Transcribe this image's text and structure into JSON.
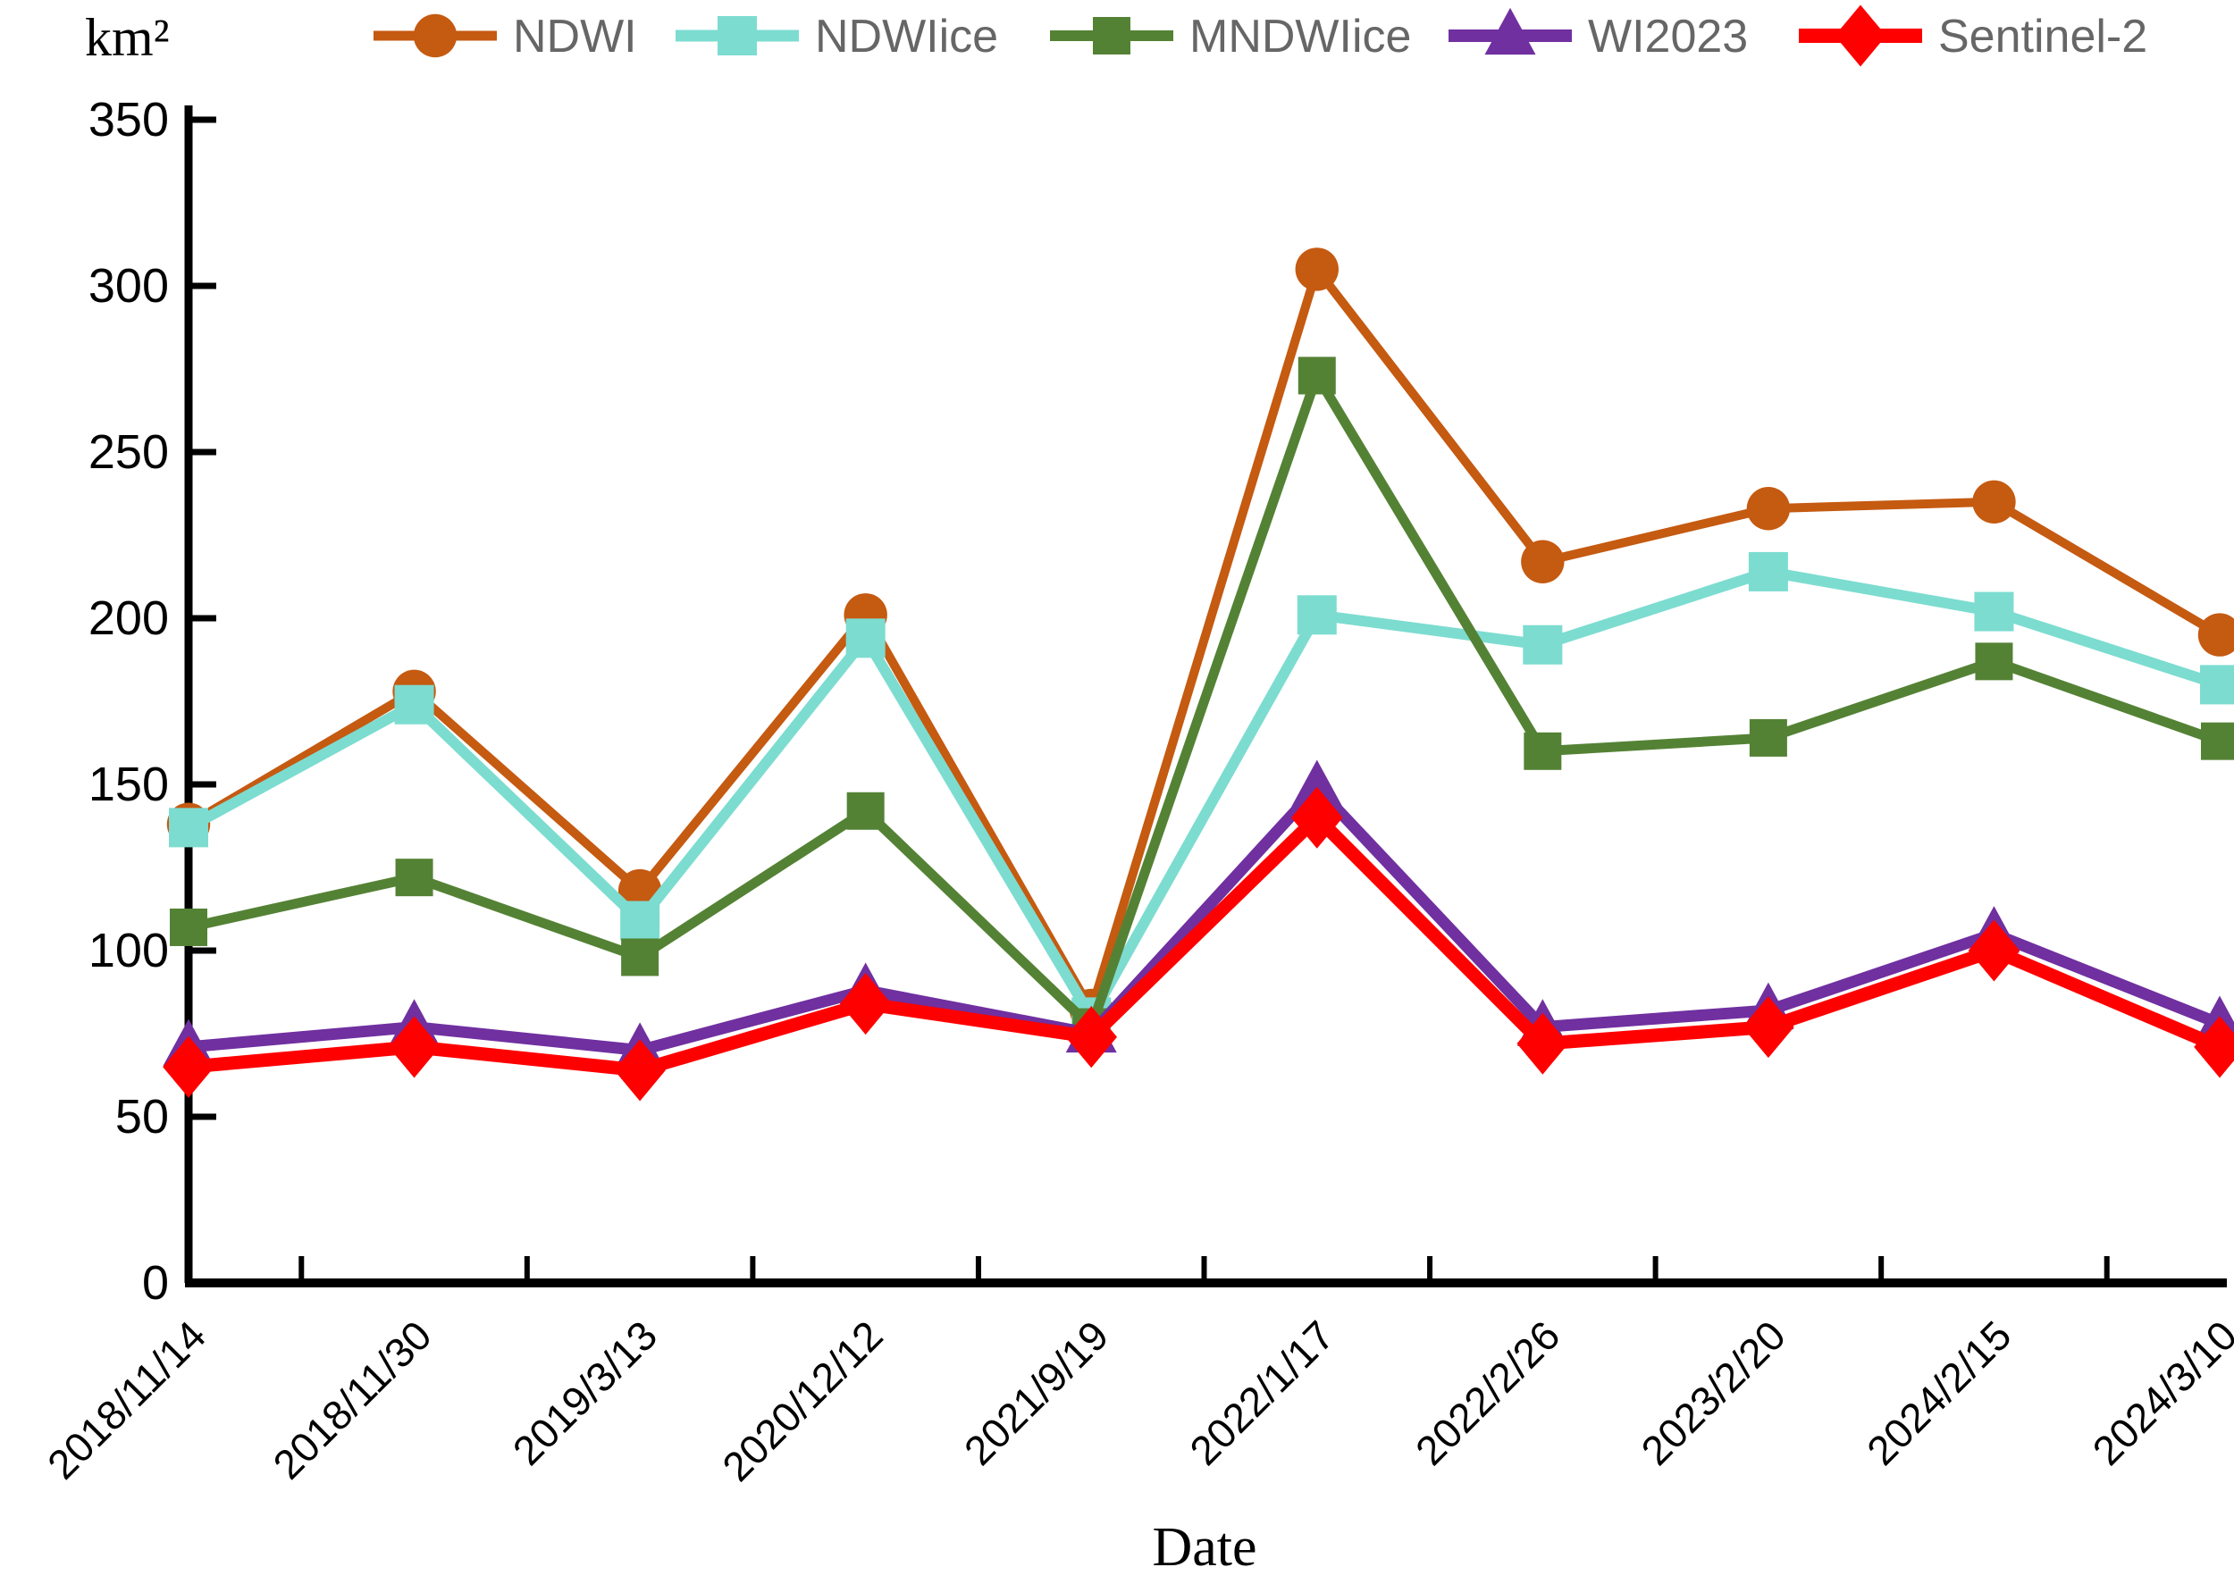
{
  "chart_data": {
    "type": "line",
    "title": "",
    "ylabel": "km²",
    "xlabel": "Date",
    "ylim": [
      0,
      350
    ],
    "yticks": [
      0,
      50,
      100,
      150,
      200,
      250,
      300,
      350
    ],
    "grid": false,
    "legend_position": "top",
    "legend_text_color": "#666666",
    "axis_color": "#000000",
    "categories": [
      "2018/11/14",
      "2018/11/30",
      "2019/3/13",
      "2020/12/12",
      "2021/9/19",
      "2022/1/17",
      "2022/2/26",
      "2023/2/20",
      "2024/2/15",
      "2024/3/10"
    ],
    "series": [
      {
        "name": "NDWI",
        "color": "#C55A11",
        "marker": "circle",
        "values": [
          138,
          178,
          118,
          201,
          82,
          305,
          217,
          233,
          235,
          195
        ]
      },
      {
        "name": "NDWIice",
        "color": "#7CDCD0",
        "marker": "square",
        "values": [
          137,
          174,
          109,
          194,
          80,
          201,
          192,
          214,
          202,
          180
        ]
      },
      {
        "name": "MNDWIice",
        "color": "#548235",
        "marker": "square",
        "values": [
          107,
          122,
          98,
          142,
          77,
          273,
          160,
          164,
          187,
          163
        ]
      },
      {
        "name": "WI2023",
        "color": "#7030A0",
        "marker": "triangle",
        "values": [
          71,
          77,
          70,
          88,
          75,
          149,
          77,
          82,
          105,
          78
        ]
      },
      {
        "name": "Sentinel-2",
        "color": "#FF0000",
        "marker": "diamond",
        "values": [
          65,
          71,
          64,
          84,
          74,
          140,
          72,
          77,
          100,
          71
        ]
      }
    ]
  }
}
